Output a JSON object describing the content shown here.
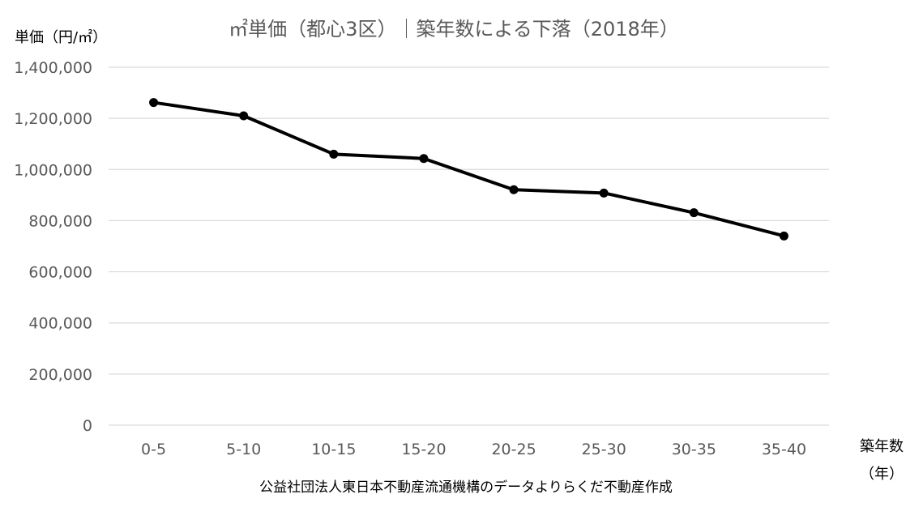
{
  "chart_data": {
    "type": "line",
    "title": "㎡単価（都心3区）｜築年数による下落（2018年）",
    "ylabel": "単価（円/㎡）",
    "xlabel_line1": "築年数",
    "xlabel_line2": "（年）",
    "categories": [
      "0-5",
      "5-10",
      "10-15",
      "15-20",
      "20-25",
      "25-30",
      "30-35",
      "35-40"
    ],
    "series": [
      {
        "values": [
          1262000,
          1210000,
          1060000,
          1043000,
          921000,
          908000,
          831000,
          740000
        ],
        "color": "#000000"
      }
    ],
    "ylim": [
      0,
      1400000
    ],
    "y_ticks": [
      0,
      200000,
      400000,
      600000,
      800000,
      1000000,
      1200000,
      1400000
    ],
    "y_tick_labels": [
      "0",
      "200,000",
      "400,000",
      "600,000",
      "800,000",
      "1,000,000",
      "1,200,000",
      "1,400,000"
    ],
    "grid": true,
    "legend": "none",
    "source_note": "公益社団法人東日本不動産流通機構のデータよりらくだ不動産作成"
  }
}
